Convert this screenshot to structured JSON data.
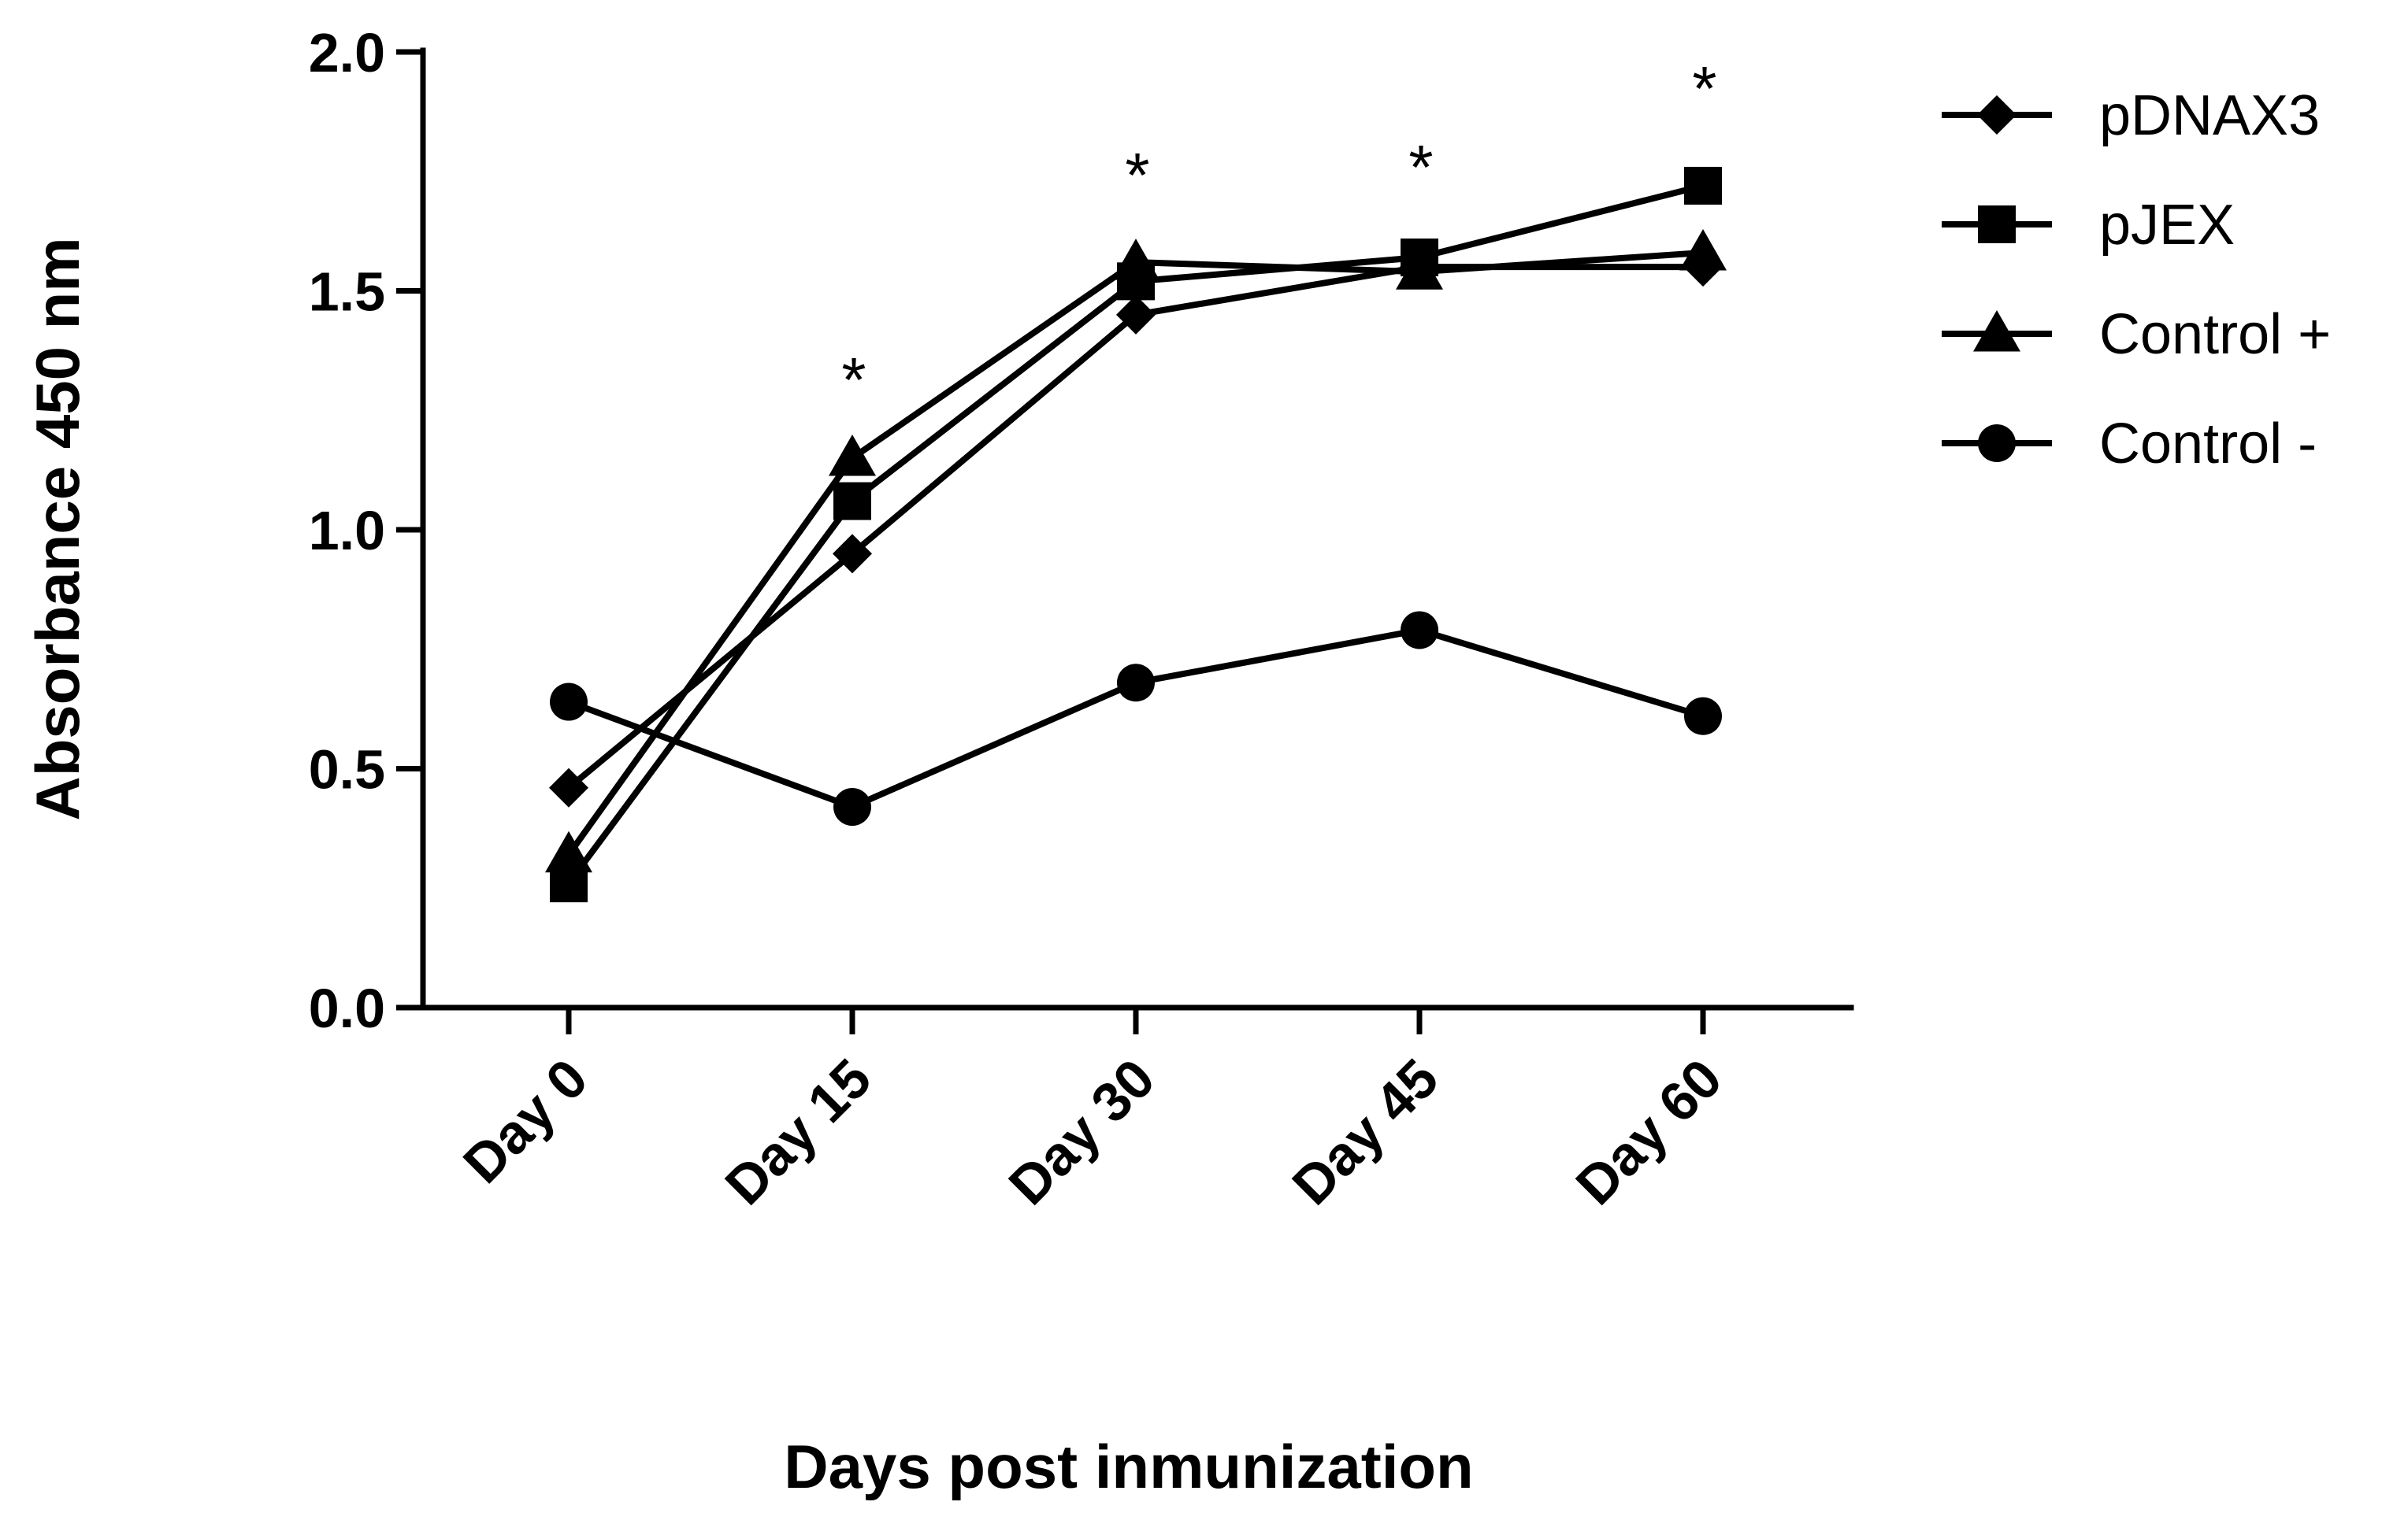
{
  "chart_data": {
    "type": "line",
    "categories": [
      "Day 0",
      "Day 15",
      "Day 30",
      "Day 45",
      "Day 60"
    ],
    "series": [
      {
        "name": "pDNAX3",
        "marker": "diamond",
        "values": [
          0.46,
          0.95,
          1.45,
          1.55,
          1.55
        ]
      },
      {
        "name": "pJEX",
        "marker": "square",
        "values": [
          0.26,
          1.06,
          1.52,
          1.57,
          1.72
        ]
      },
      {
        "name": "Control +",
        "marker": "triangle",
        "values": [
          0.32,
          1.15,
          1.56,
          1.54,
          1.58
        ]
      },
      {
        "name": "Control -",
        "marker": "circle",
        "values": [
          0.64,
          0.42,
          0.68,
          0.79,
          0.61
        ]
      }
    ],
    "significance": [
      {
        "category": "Day 15",
        "label": "*"
      },
      {
        "category": "Day 30",
        "label": "*"
      },
      {
        "category": "Day 45",
        "label": "*"
      },
      {
        "category": "Day 60",
        "label": "*"
      }
    ],
    "xlabel": "Days post inmunization",
    "ylabel": "Absorbance 450 nm",
    "ylim": [
      0,
      2.0
    ],
    "yticks": [
      "0.0",
      "0.5",
      "1.0",
      "1.5",
      "2.0"
    ],
    "ytick_values": [
      0,
      0.5,
      1.0,
      1.5,
      2.0
    ],
    "grid": false,
    "legend_position": "top-right",
    "color": "#000000"
  }
}
